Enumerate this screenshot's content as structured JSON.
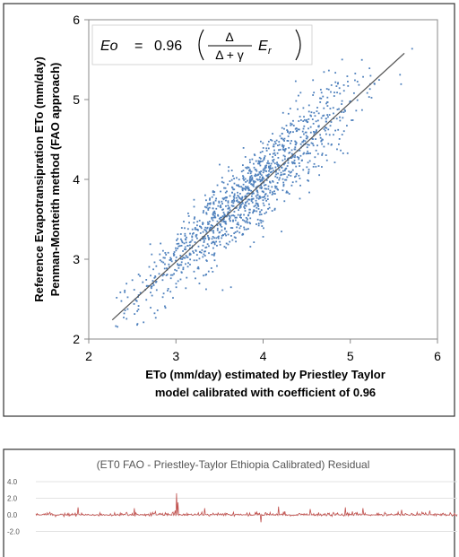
{
  "chart_data": [
    {
      "type": "scatter",
      "title": "",
      "xlabel_line1": "ETo (mm/day) estimated by  Priestley Taylor",
      "xlabel_line2": "model calibrated with coefficient of 0.96",
      "ylabel_line1": "Reference Evapotransipration ETo  (mm/day)",
      "ylabel_line2": "Penman-Monteith method (FAO approach)",
      "xlim": [
        2,
        6
      ],
      "ylim": [
        2,
        6
      ],
      "xticks": [
        "2",
        "3",
        "4",
        "5",
        "6"
      ],
      "yticks": [
        "2",
        "3",
        "4",
        "5",
        "6"
      ],
      "grid": false,
      "legend": "none",
      "point_color": "#4f81bd",
      "line_color": "#555555",
      "fit_line": {
        "x": [
          2.27,
          5.62
        ],
        "y": [
          2.24,
          5.58
        ]
      },
      "equation": {
        "lhs": "Eo",
        "equals": "=",
        "coefficient": "0.96",
        "numerator": "Δ",
        "denominator": "Δ + γ",
        "factor": "E",
        "subscript": "r"
      },
      "point_cloud": {
        "count": 1300,
        "x_range": [
          2.3,
          5.9
        ],
        "x_mean": 3.85,
        "x_sd": 0.62,
        "slope": 0.99,
        "intercept": 0.03,
        "residual_sd": 0.27
      }
    },
    {
      "type": "line",
      "title": "(ET0 FAO - Priestley-Taylor Ethiopia Calibrated) Residual",
      "xlabel": "",
      "ylabel": "",
      "ylim": [
        -2.0,
        4.0
      ],
      "yticks": [
        "4.0",
        "2.0",
        "0.0",
        "-2.0"
      ],
      "grid": true,
      "legend": "none",
      "line_color": "#c0504d",
      "series": {
        "length": 600,
        "baseline": 0.0,
        "noise_sd": 0.18,
        "spikes": [
          {
            "index": 200,
            "value": 2.6
          },
          {
            "index": 202,
            "value": 1.5
          },
          {
            "index": 60,
            "value": 0.9
          },
          {
            "index": 140,
            "value": 0.8
          },
          {
            "index": 240,
            "value": 0.8
          },
          {
            "index": 320,
            "value": -0.9
          },
          {
            "index": 345,
            "value": 1.0
          },
          {
            "index": 390,
            "value": 0.7
          },
          {
            "index": 440,
            "value": 0.9
          },
          {
            "index": 465,
            "value": 0.8
          },
          {
            "index": 520,
            "value": 0.6
          },
          {
            "index": 560,
            "value": 0.5
          }
        ]
      }
    }
  ]
}
